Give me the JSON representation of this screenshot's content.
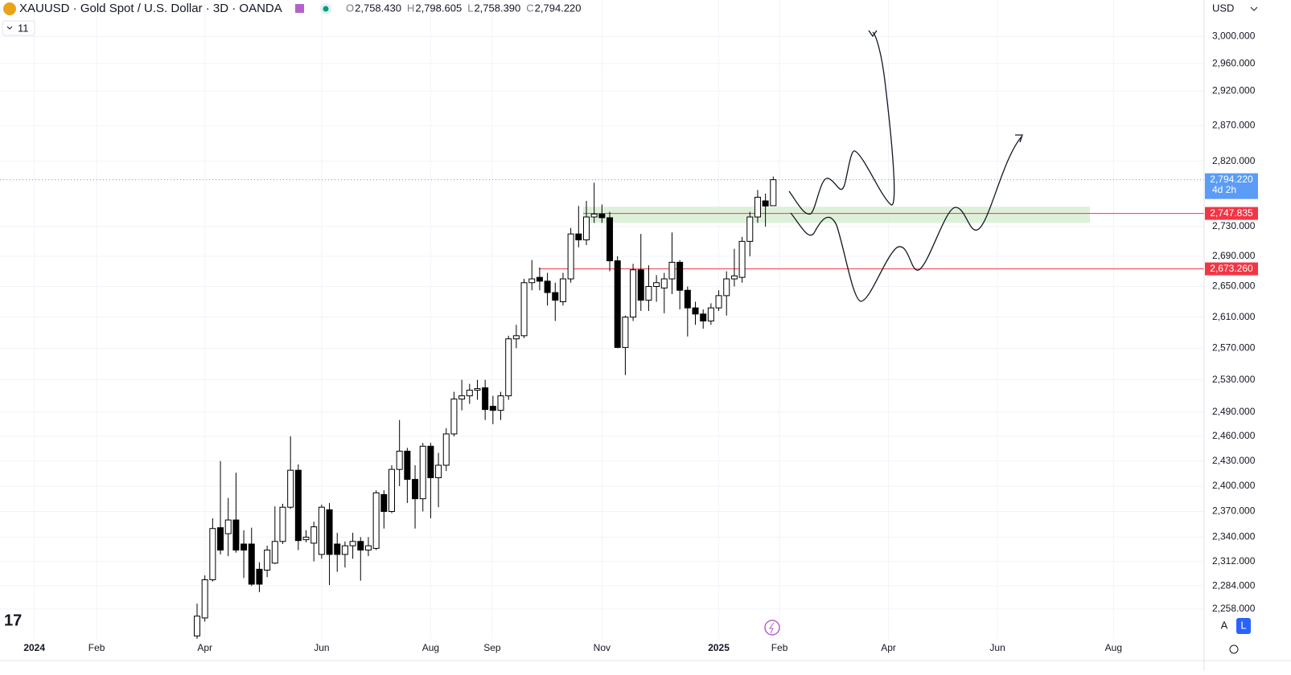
{
  "header": {
    "symbol": "XAUUSD · Gold Spot / U.S. Dollar · 3D · OANDA",
    "ohlc": [
      {
        "label": "O",
        "value": "2,758.430"
      },
      {
        "label": "H",
        "value": "2,798.605"
      },
      {
        "label": "L",
        "value": "2,758.390"
      },
      {
        "label": "C",
        "value": "2,794.220"
      }
    ],
    "indicator_count": "11",
    "currency": "USD",
    "auto_button": "A",
    "log_button": "L"
  },
  "chart_data": {
    "type": "candlestick",
    "log_scale": true,
    "grid": true,
    "up_color": "#ffffff",
    "down_color": "#000000",
    "border_color": "#000000",
    "open": [
      2228,
      2248,
      2291,
      2351,
      2344,
      2360,
      2332,
      2332,
      2303,
      2302,
      2310,
      2335,
      2375,
      2419,
      2337,
      2333,
      2320,
      2372,
      2332,
      2320,
      2330,
      2335,
      2325,
      2327,
      2390,
      2370,
      2420,
      2442,
      2408,
      2385,
      2448,
      2410,
      2425,
      2463,
      2506,
      2510,
      2517,
      2520,
      2497,
      2492,
      2510,
      2582,
      2586,
      2655,
      2662,
      2657,
      2642,
      2630,
      2660,
      2720,
      2712,
      2743,
      2747,
      2742,
      2684,
      2571,
      2610,
      2672,
      2632,
      2650,
      2648,
      2660,
      2682,
      2645,
      2622,
      2614,
      2605,
      2622,
      2638,
      2660,
      2662,
      2710,
      2743,
      2765,
      2758.43
    ],
    "high": [
      2264,
      2296,
      2362,
      2430,
      2386,
      2416,
      2348,
      2351,
      2311,
      2330,
      2376,
      2379,
      2460,
      2426,
      2348,
      2358,
      2378,
      2380,
      2345,
      2335,
      2345,
      2340,
      2340,
      2395,
      2395,
      2425,
      2480,
      2446,
      2425,
      2452,
      2452,
      2440,
      2470,
      2515,
      2530,
      2525,
      2530,
      2530,
      2510,
      2515,
      2586,
      2600,
      2660,
      2685,
      2675,
      2668,
      2655,
      2668,
      2728,
      2758,
      2765,
      2790,
      2760,
      2750,
      2690,
      2612,
      2680,
      2720,
      2678,
      2665,
      2668,
      2722,
      2685,
      2650,
      2630,
      2620,
      2628,
      2645,
      2670,
      2700,
      2716,
      2750,
      2780,
      2775,
      2798.605
    ],
    "low": [
      2224,
      2244,
      2289,
      2320,
      2318,
      2322,
      2293,
      2284,
      2277,
      2294,
      2309,
      2332,
      2373,
      2325,
      2334,
      2312,
      2315,
      2285,
      2300,
      2305,
      2315,
      2290,
      2318,
      2325,
      2350,
      2368,
      2400,
      2380,
      2350,
      2370,
      2362,
      2375,
      2418,
      2460,
      2492,
      2500,
      2505,
      2480,
      2475,
      2480,
      2505,
      2570,
      2583,
      2645,
      2645,
      2625,
      2605,
      2625,
      2655,
      2702,
      2705,
      2735,
      2735,
      2670,
      2570,
      2536,
      2605,
      2618,
      2618,
      2630,
      2615,
      2640,
      2620,
      2585,
      2600,
      2595,
      2600,
      2618,
      2612,
      2650,
      2655,
      2690,
      2735,
      2730,
      2758.39
    ],
    "close": [
      2250,
      2291,
      2350,
      2325,
      2360,
      2325,
      2325,
      2286,
      2286,
      2325,
      2335,
      2375,
      2419,
      2336,
      2340,
      2352,
      2375,
      2320,
      2320,
      2330,
      2335,
      2325,
      2330,
      2392,
      2370,
      2420,
      2442,
      2408,
      2385,
      2448,
      2410,
      2425,
      2463,
      2506,
      2510,
      2517,
      2519,
      2493,
      2492,
      2510,
      2582,
      2586,
      2655,
      2660,
      2657,
      2642,
      2632,
      2660,
      2720,
      2712,
      2743,
      2747,
      2742,
      2684,
      2571,
      2610,
      2672,
      2632,
      2650,
      2655,
      2660,
      2682,
      2645,
      2622,
      2614,
      2605,
      2622,
      2638,
      2660,
      2664,
      2710,
      2743,
      2770,
      2758,
      2794.22
    ],
    "ylim": [
      2224.8,
      3054.9
    ],
    "yticks": [
      {
        "value": 3000,
        "label": "3,000.000"
      },
      {
        "value": 2960,
        "label": "2,960.000"
      },
      {
        "value": 2920,
        "label": "2,920.000"
      },
      {
        "value": 2870,
        "label": "2,870.000"
      },
      {
        "value": 2820,
        "label": "2,820.000"
      },
      {
        "value": 2730,
        "label": "2,730.000"
      },
      {
        "value": 2690,
        "label": "2,690.000"
      },
      {
        "value": 2650,
        "label": "2,650.000"
      },
      {
        "value": 2610,
        "label": "2,610.000"
      },
      {
        "value": 2570,
        "label": "2,570.000"
      },
      {
        "value": 2530,
        "label": "2,530.000"
      },
      {
        "value": 2490,
        "label": "2,490.000"
      },
      {
        "value": 2460,
        "label": "2,460.000"
      },
      {
        "value": 2430,
        "label": "2,430.000"
      },
      {
        "value": 2400,
        "label": "2,400.000"
      },
      {
        "value": 2370,
        "label": "2,370.000"
      },
      {
        "value": 2340,
        "label": "2,340.000"
      },
      {
        "value": 2312,
        "label": "2,312.000"
      },
      {
        "value": 2284,
        "label": "2,284.000"
      },
      {
        "value": 2258,
        "label": "2,258.000"
      }
    ],
    "xlim": [
      -25.31,
      129.34
    ],
    "xticks": [
      {
        "value": -20.9,
        "label": "2024"
      },
      {
        "value": -12.9,
        "label": "Feb"
      },
      {
        "value": 1.0,
        "label": "Apr"
      },
      {
        "value": 16.0,
        "label": "Jun"
      },
      {
        "value": 30.0,
        "label": "Aug"
      },
      {
        "value": 37.9,
        "label": "Sep"
      },
      {
        "value": 52.0,
        "label": "Nov"
      },
      {
        "value": 67.0,
        "label": "2025"
      },
      {
        "value": 74.8,
        "label": "Feb"
      },
      {
        "value": 88.8,
        "label": "Apr"
      },
      {
        "value": 102.8,
        "label": "Jun"
      },
      {
        "value": 117.7,
        "label": "Aug"
      }
    ],
    "last_price": {
      "value": 2794.22,
      "label": "2,794.220",
      "countdown": "4d 2h",
      "color": "#5b9cf6"
    },
    "price_lines": [
      {
        "value": 2747.835,
        "label": "2,747.835",
        "color": "#f23645"
      },
      {
        "value": 2673.26,
        "label": "2,673.260",
        "color": "#f23645"
      }
    ],
    "zone": {
      "low": 2735,
      "high": 2757,
      "color": "#d7efd4"
    }
  }
}
